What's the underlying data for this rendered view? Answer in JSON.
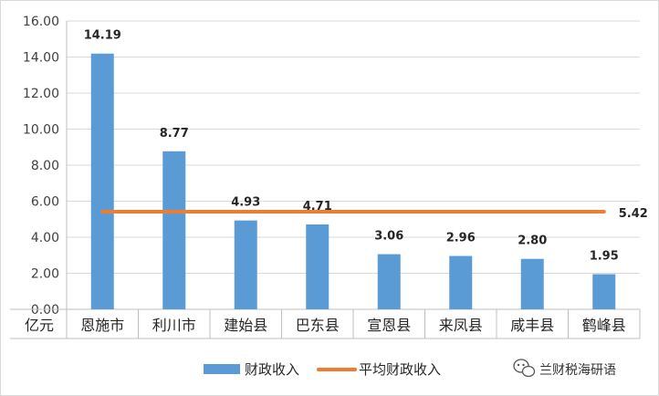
{
  "chart_data": {
    "type": "bar",
    "categories": [
      "恩施市",
      "利川市",
      "建始县",
      "巴东县",
      "宣恩县",
      "来凤县",
      "咸丰县",
      "鹤峰县"
    ],
    "series": [
      {
        "name": "财政收入",
        "kind": "bar",
        "color": "#5b9bd5",
        "values": [
          14.19,
          8.77,
          4.93,
          4.71,
          3.06,
          2.96,
          2.8,
          1.95
        ],
        "labels": [
          "14.19",
          "8.77",
          "4.93",
          "4.71",
          "3.06",
          "2.96",
          "2.80",
          "1.95"
        ]
      },
      {
        "name": "平均财政收入",
        "kind": "line",
        "color": "#ed7d31",
        "value": 5.42,
        "label": "5.42"
      }
    ],
    "y_unit": "亿元",
    "ylim": [
      0,
      16
    ],
    "yticks": [
      "0.00",
      "2.00",
      "4.00",
      "6.00",
      "8.00",
      "10.00",
      "12.00",
      "14.00",
      "16.00"
    ],
    "grid": true,
    "legend_position": "bottom"
  },
  "watermark": {
    "text": "兰财税海研语",
    "icon": "wechat-icon"
  }
}
